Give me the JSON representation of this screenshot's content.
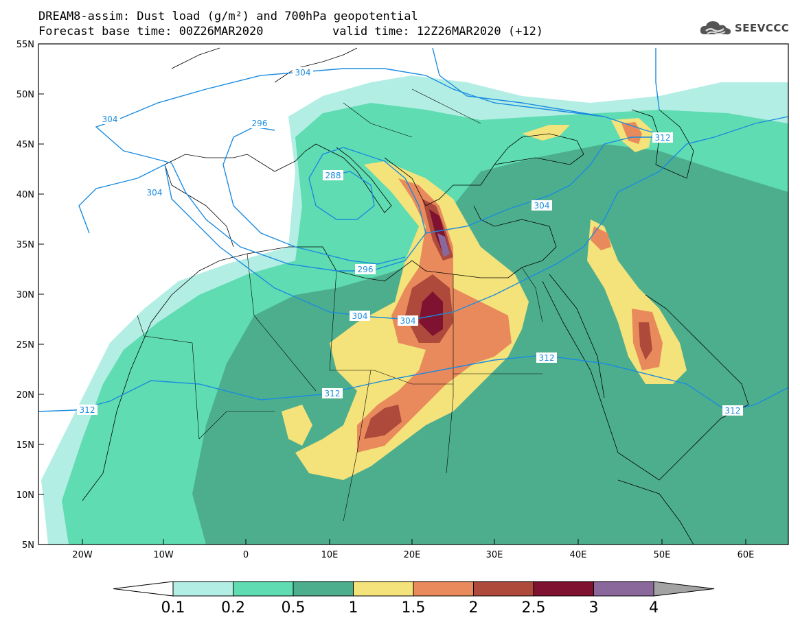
{
  "title": {
    "line1": "DREAM8-assim: Dust load (g/m²) and 700hPa geopotential",
    "base_time": "Forecast base time: 00Z26MAR2020",
    "valid_time": "valid time: 12Z26MAR2020 (+12)"
  },
  "logo": {
    "text": "SEEVCCC",
    "icon": "cloud-logo-icon"
  },
  "axes": {
    "lat_labels": [
      "55N",
      "50N",
      "45N",
      "40N",
      "35N",
      "30N",
      "25N",
      "20N",
      "15N",
      "10N",
      "5N"
    ],
    "lon_labels": [
      "20W",
      "10W",
      "0",
      "10E",
      "20E",
      "30E",
      "40E",
      "50E",
      "60E"
    ]
  },
  "contour_labels": [
    "304",
    "304",
    "296",
    "304",
    "288",
    "296",
    "304",
    "304",
    "304",
    "312",
    "312",
    "312",
    "312",
    "312"
  ],
  "colorbar": {
    "labels": [
      "0.1",
      "0.2",
      "0.5",
      "1",
      "1.5",
      "2",
      "2.5",
      "3",
      "4"
    ],
    "colors": [
      "#b3eee4",
      "#5fdcb1",
      "#4dae8e",
      "#f4e27a",
      "#e98a5c",
      "#ad4a3c",
      "#7e1230",
      "#8a689c"
    ],
    "under_color": "#ffffff",
    "over_color": "#a3a3a3"
  },
  "colors": {
    "isoline": "#1a8be0",
    "land_outline": "#000000",
    "background": "#ffffff"
  }
}
